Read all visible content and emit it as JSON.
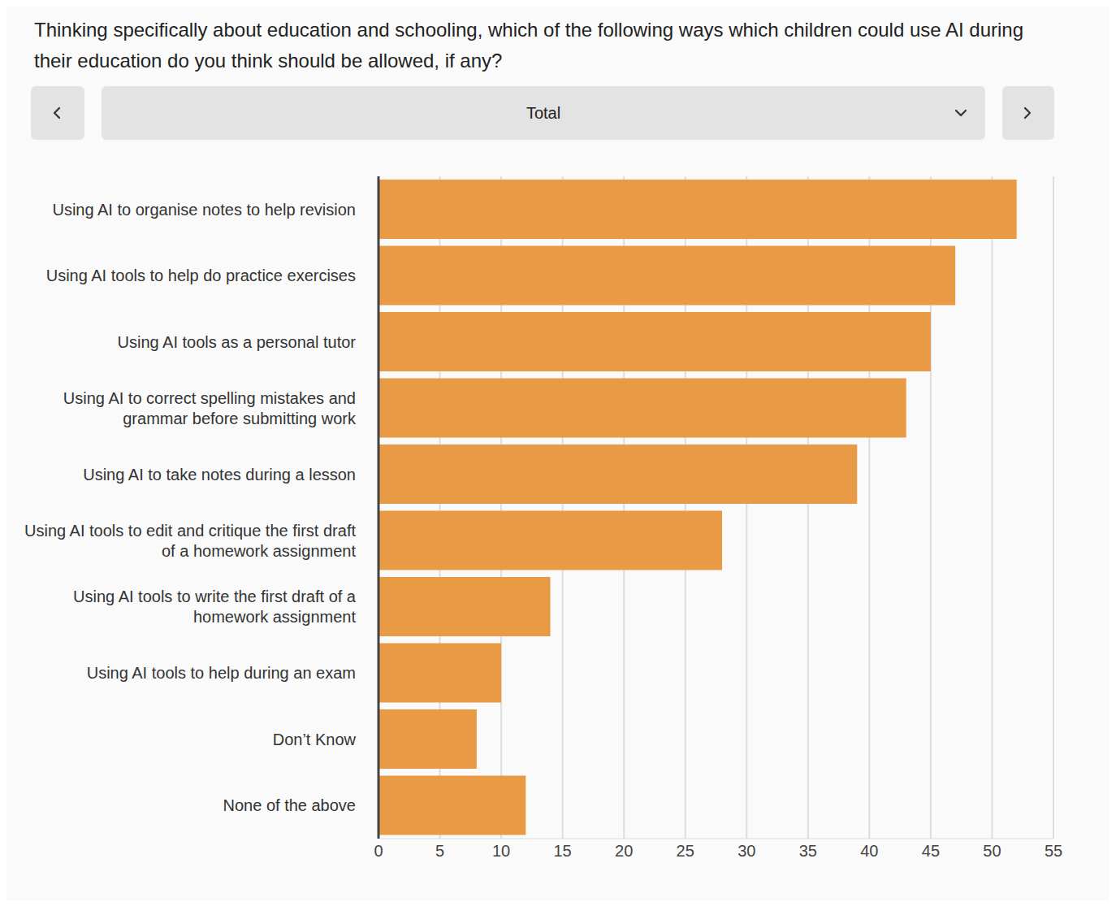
{
  "chart_data": {
    "type": "bar",
    "title": "Thinking specifically about education and schooling, which of the following ways which children could use AI during their education do you think should be allowed, if any?",
    "subtitle": "Total",
    "orientation": "horizontal",
    "categories": [
      "Using AI to organise notes to help revision",
      "Using AI tools to help do practice exercises",
      "Using AI tools as a personal tutor",
      "Using AI to correct spelling mistakes and grammar before submitting work",
      "Using AI to take notes during a lesson",
      "Using AI tools to edit and critique the first draft of a homework assignment",
      "Using AI tools to write the first draft of a homework assignment",
      "Using AI tools to help during an exam",
      "Don’t Know",
      "None of the above"
    ],
    "values": [
      52,
      47,
      45,
      43,
      39,
      28,
      14,
      10,
      8,
      12
    ],
    "color": "#e89a45",
    "xlim": [
      0,
      55
    ],
    "xticks": [
      0,
      5,
      10,
      15,
      20,
      25,
      30,
      35,
      40,
      45,
      50,
      55
    ],
    "grid": true
  }
}
